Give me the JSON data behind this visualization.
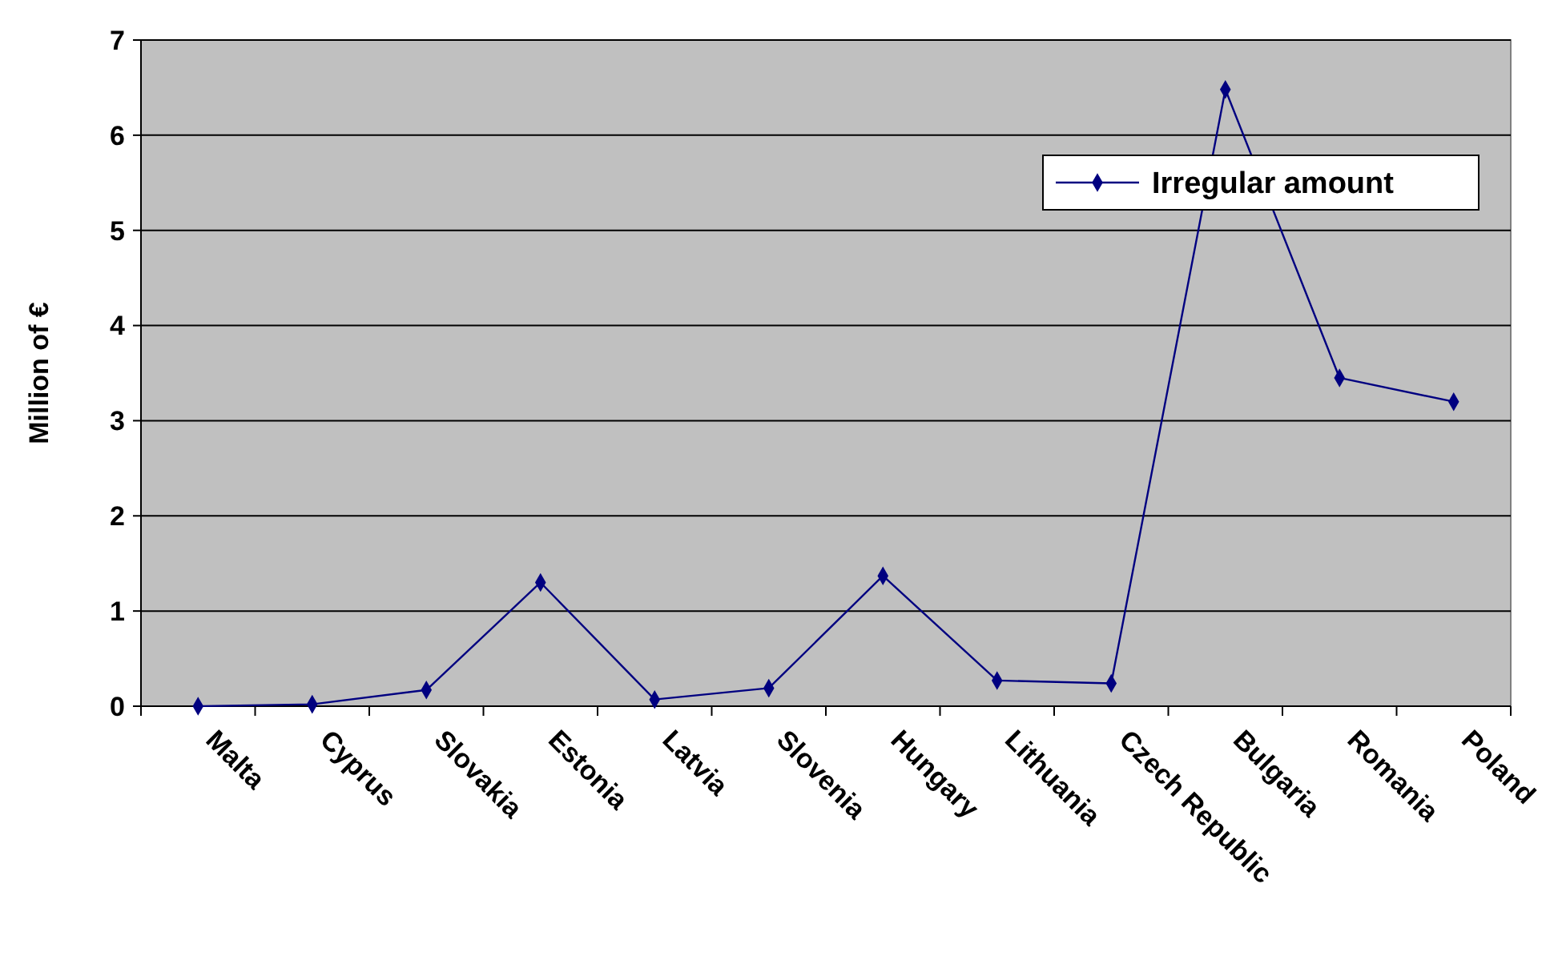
{
  "chart_data": {
    "type": "line",
    "ylabel": "Million of €",
    "categories": [
      "Malta",
      "Cyprus",
      "Slovakia",
      "Estonia",
      "Latvia",
      "Slovenia",
      "Hungary",
      "Lithuania",
      "Czech Republic",
      "Bulgaria",
      "Romania",
      "Poland"
    ],
    "series": [
      {
        "name": "Irregular amount",
        "color": "#000080",
        "values": [
          0,
          0.02,
          0.17,
          1.3,
          0.07,
          0.19,
          1.37,
          0.27,
          0.24,
          6.48,
          3.45,
          3.2
        ]
      }
    ],
    "ylim": [
      0,
      7
    ],
    "yticks": [
      0,
      1,
      2,
      3,
      4,
      5,
      6,
      7
    ],
    "grid": "y",
    "legend": "top right",
    "marker": "diamond",
    "line_style": "solid"
  }
}
